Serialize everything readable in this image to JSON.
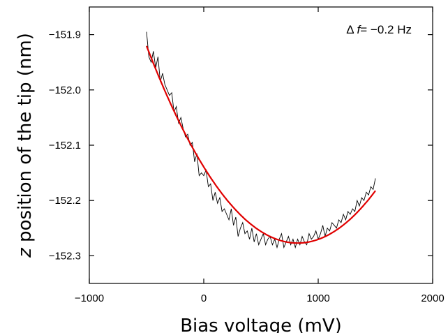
{
  "chart_data": {
    "type": "line",
    "title": "",
    "xlabel": "Bias voltage (mV)",
    "ylabel_var": "z",
    "ylabel_rest": " position of the tip (nm)",
    "xlim": [
      -1000,
      2000
    ],
    "ylim": [
      -152.35,
      -151.85
    ],
    "xticks": [
      -1000,
      0,
      1000,
      2000
    ],
    "xtick_labels": [
      "−1000",
      "0",
      "1000",
      "2000"
    ],
    "yticks": [
      -151.9,
      -152.0,
      -152.1,
      -152.2,
      -152.3
    ],
    "ytick_labels": [
      "−151.9",
      "−152.0",
      "−152.1",
      "−152.2",
      "−152.3"
    ],
    "grid": false,
    "annotation": {
      "delta": "Δ",
      "var": "f",
      "rest": "= −0.2 Hz",
      "position": "top-right"
    },
    "series": [
      {
        "style": "measured",
        "color": "#000000",
        "x": [
          -500,
          -480,
          -460,
          -440,
          -420,
          -400,
          -380,
          -360,
          -340,
          -320,
          -300,
          -280,
          -260,
          -240,
          -220,
          -200,
          -180,
          -160,
          -140,
          -120,
          -100,
          -80,
          -60,
          -40,
          -20,
          0,
          20,
          40,
          60,
          80,
          100,
          120,
          140,
          160,
          180,
          200,
          220,
          240,
          260,
          280,
          300,
          320,
          340,
          360,
          380,
          400,
          420,
          440,
          460,
          480,
          500,
          520,
          540,
          560,
          580,
          600,
          620,
          640,
          660,
          680,
          700,
          720,
          740,
          760,
          780,
          800,
          820,
          840,
          860,
          880,
          900,
          920,
          940,
          960,
          980,
          1000,
          1020,
          1040,
          1060,
          1080,
          1100,
          1120,
          1140,
          1160,
          1180,
          1200,
          1220,
          1240,
          1260,
          1280,
          1300,
          1320,
          1340,
          1360,
          1380,
          1400,
          1420,
          1440,
          1460,
          1480,
          1500
        ],
        "y": [
          -151.895,
          -151.94,
          -151.95,
          -151.93,
          -151.96,
          -151.94,
          -151.985,
          -151.97,
          -151.99,
          -152.0,
          -152.01,
          -152.005,
          -152.04,
          -152.03,
          -152.06,
          -152.05,
          -152.07,
          -152.085,
          -152.08,
          -152.1,
          -152.095,
          -152.13,
          -152.115,
          -152.155,
          -152.15,
          -152.155,
          -152.145,
          -152.175,
          -152.17,
          -152.2,
          -152.185,
          -152.205,
          -152.195,
          -152.22,
          -152.215,
          -152.225,
          -152.235,
          -152.215,
          -152.245,
          -152.23,
          -152.265,
          -152.25,
          -152.24,
          -152.26,
          -152.255,
          -152.27,
          -152.25,
          -152.275,
          -152.26,
          -152.28,
          -152.27,
          -152.26,
          -152.28,
          -152.27,
          -152.265,
          -152.28,
          -152.27,
          -152.285,
          -152.27,
          -152.26,
          -152.285,
          -152.275,
          -152.265,
          -152.28,
          -152.27,
          -152.285,
          -152.27,
          -152.28,
          -152.265,
          -152.275,
          -152.28,
          -152.26,
          -152.27,
          -152.265,
          -152.255,
          -152.27,
          -152.26,
          -152.245,
          -152.265,
          -152.25,
          -152.255,
          -152.24,
          -152.245,
          -152.25,
          -152.235,
          -152.24,
          -152.225,
          -152.235,
          -152.22,
          -152.225,
          -152.215,
          -152.22,
          -152.2,
          -152.21,
          -152.195,
          -152.2,
          -152.185,
          -152.19,
          -152.175,
          -152.18,
          -152.16
        ]
      },
      {
        "style": "parabolic fit",
        "color": "#e00000",
        "fit": {
          "vertex_x": 820,
          "vertex_y": -152.277,
          "curvature": 2.047e-07
        },
        "x_range": [
          -500,
          1500
        ]
      }
    ]
  }
}
